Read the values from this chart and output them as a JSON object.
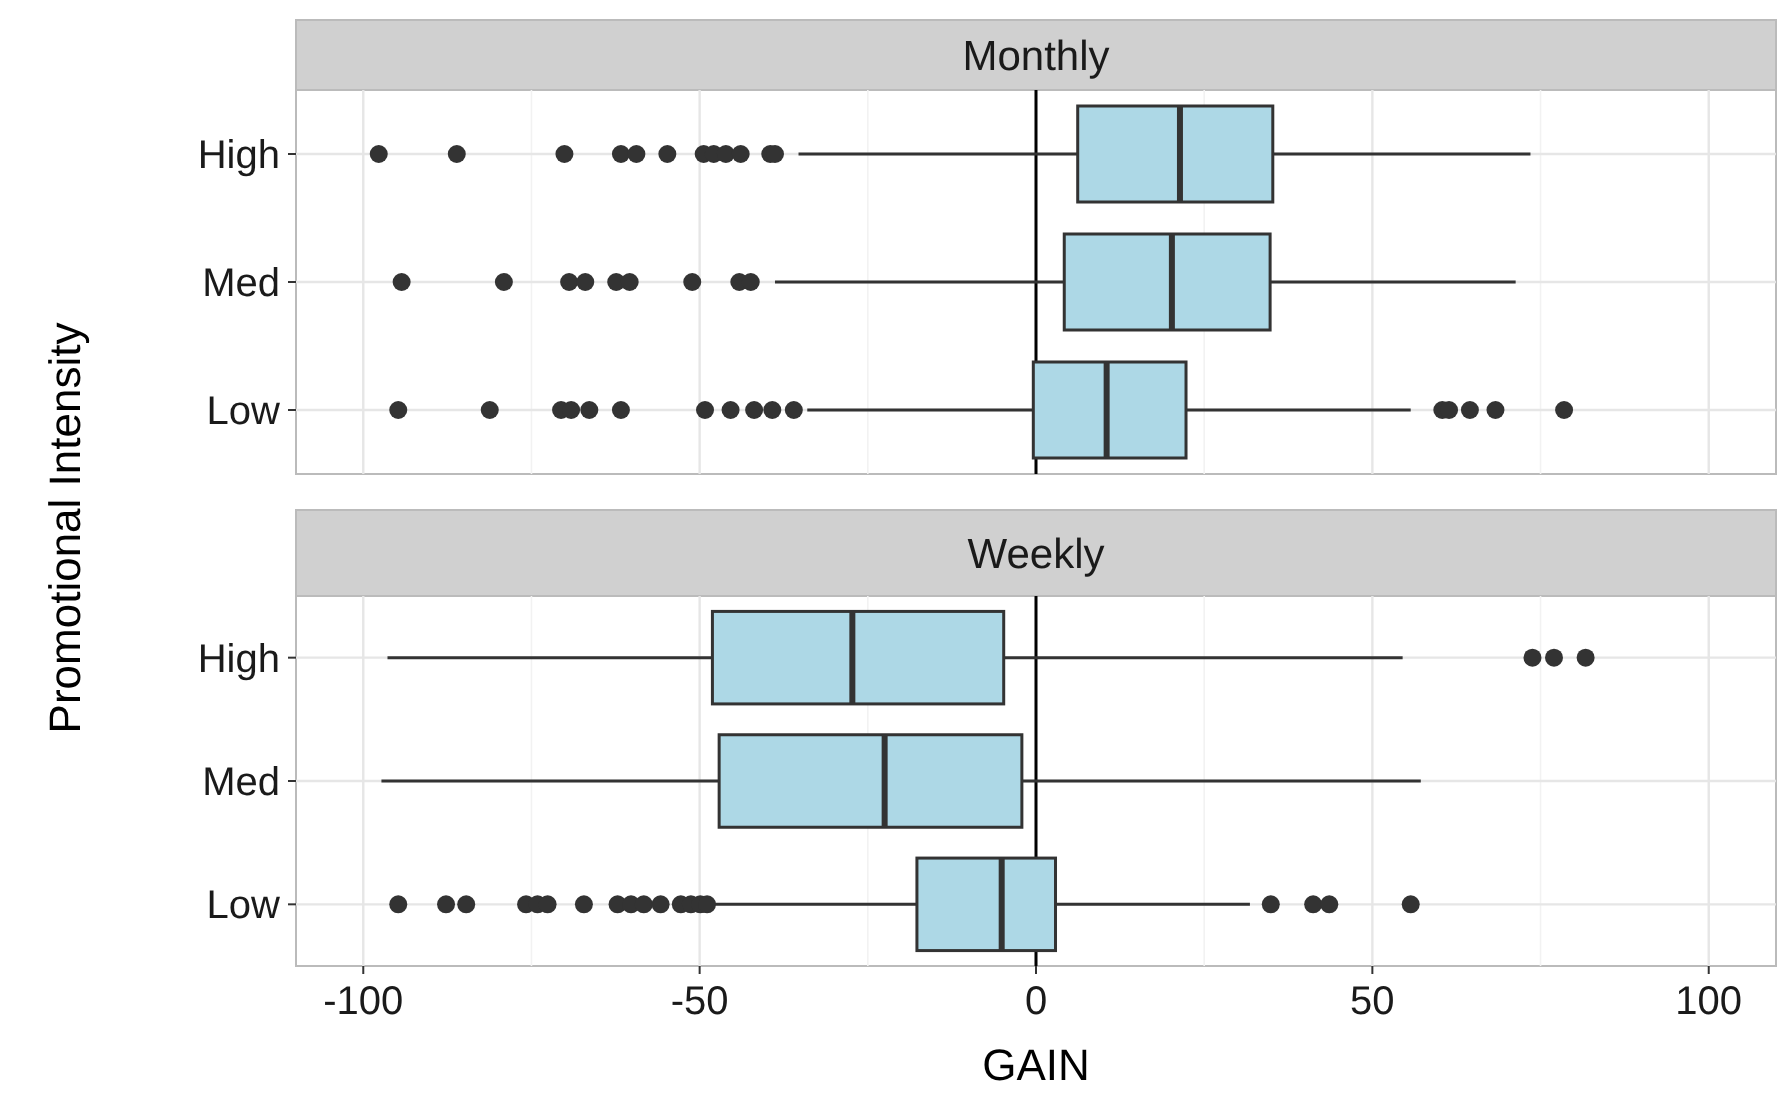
{
  "chart_data": [
    {
      "type": "box",
      "title": "Monthly",
      "ylabel": "Promotional Intensity",
      "orientation": "horizontal",
      "categories": [
        "High",
        "Med",
        "Low"
      ],
      "color": "#add8e6",
      "grid": true,
      "tick_labels": "y",
      "xlim": [
        -110,
        110
      ],
      "xticks": [
        -100,
        {
          "value": -75,
          "label": null
        },
        -50,
        {
          "value": -25,
          "label": null
        },
        0,
        {
          "value": 25,
          "label": null
        },
        50,
        {
          "value": 75,
          "label": null
        },
        100
      ],
      "ref_lines": [
        {
          "axis": "x",
          "value": 0
        }
      ],
      "boxes": [
        {
          "low": -35.3,
          "q1": 6.2,
          "median": 21.4,
          "q3": 35.2,
          "high": 73.5,
          "outliers": [
            -97.7,
            -86.1,
            -70.1,
            -61.7,
            -59.4,
            -54.8,
            -49.4,
            -47.9,
            -46.1,
            -43.9,
            -39.5,
            -38.8
          ]
        },
        {
          "low": -38.8,
          "q1": 4.2,
          "median": 20.2,
          "q3": 34.8,
          "high": 71.3,
          "outliers": [
            -94.3,
            -79.1,
            -69.4,
            -67,
            -62.4,
            -60.4,
            -51.1,
            -44.1,
            -42.4
          ]
        },
        {
          "low": -34,
          "q1": -0.4,
          "median": 10.5,
          "q3": 22.3,
          "high": 55.7,
          "outliers": [
            -94.8,
            -81.2,
            -70.6,
            -69.1,
            -66.4,
            -61.7,
            -49.2,
            -45.4,
            -41.9,
            -39.2,
            -36,
            60.4,
            61.4,
            64.5,
            68.3,
            78.5
          ]
        }
      ]
    },
    {
      "type": "box",
      "title": "Weekly",
      "xlabel": "GAIN",
      "orientation": "horizontal",
      "categories": [
        "High",
        "Med",
        "Low"
      ],
      "color": "#add8e6",
      "grid": true,
      "xlim": [
        -110,
        110
      ],
      "xticks": [
        -100,
        {
          "value": -75,
          "label": null
        },
        -50,
        {
          "value": -25,
          "label": null
        },
        0,
        {
          "value": 25,
          "label": null
        },
        50,
        {
          "value": 75,
          "label": null
        },
        100
      ],
      "ref_lines": [
        {
          "axis": "x",
          "value": 0
        }
      ],
      "boxes": [
        {
          "low": -96.4,
          "q1": -48.1,
          "median": -27.3,
          "q3": -4.8,
          "high": 54.5,
          "outliers": [
            73.8,
            77,
            81.7
          ]
        },
        {
          "low": -97.3,
          "q1": -47.1,
          "median": -22.5,
          "q3": -2.1,
          "high": 57.2
        },
        {
          "low": -47.9,
          "q1": -17.7,
          "median": -5.1,
          "q3": 2.9,
          "high": 31.8,
          "outliers": [
            -94.8,
            -87.7,
            -84.7,
            -75.8,
            -74.1,
            -72.6,
            -67.2,
            -62.2,
            -60.2,
            -58.3,
            -55.8,
            -52.8,
            -51.3,
            -49.9,
            -48.9,
            34.9,
            41.2,
            43.6,
            55.7
          ]
        }
      ]
    }
  ]
}
